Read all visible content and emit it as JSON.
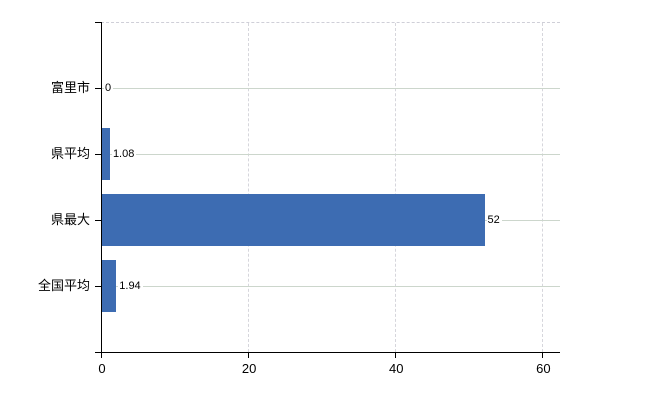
{
  "chart_data": {
    "type": "bar",
    "orientation": "horizontal",
    "categories": [
      "富里市",
      "県平均",
      "県最大",
      "全国平均"
    ],
    "values": [
      0,
      1.08,
      52,
      1.94
    ],
    "value_labels": [
      "0",
      "1.08",
      "52",
      "1.94"
    ],
    "x_ticks": [
      0,
      20,
      40,
      60
    ],
    "x_tick_labels": [
      "0",
      "20",
      "40",
      "60"
    ],
    "xlim": [
      0,
      62.4
    ],
    "grid": true,
    "legend_position": "none",
    "colors": {
      "bar": "#3d6cb2",
      "axis": "#000000",
      "text": "#000000",
      "gridline_horizontal": "#ccd6cc",
      "gridline_vertical": "#d6d6dc",
      "plot_top_border": "#cfcfd8",
      "background": "#ffffff"
    }
  }
}
